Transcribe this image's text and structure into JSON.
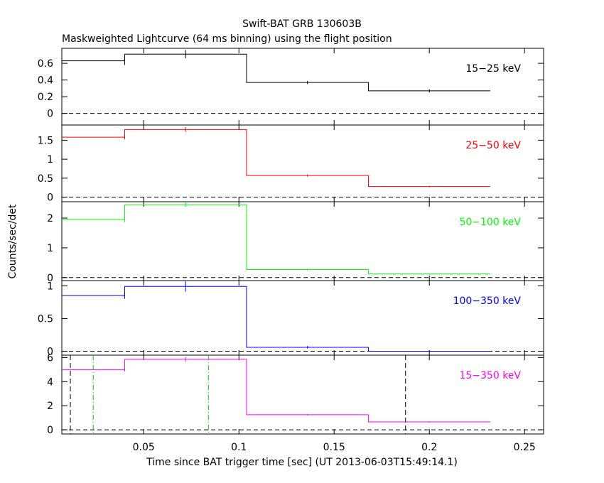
{
  "chart_data": {
    "type": "line",
    "title": "Swift-BAT GRB 130603B",
    "subtitle": "Maskweighted Lightcurve (64 ms binning) using the flight position",
    "xlabel": "Time since BAT trigger time [sec] (UT 2013-06-03T15:49:14.1)",
    "ylabel": "Counts/sec/det",
    "xlim": [
      0.007,
      0.26
    ],
    "x_ticks": [
      "0.05",
      "0.1",
      "0.15",
      "0.2",
      "0.25"
    ],
    "x_tick_values": [
      0.05,
      0.1,
      0.15,
      0.2,
      0.25
    ],
    "bin_edges": [
      0.007,
      0.04,
      0.104,
      0.168,
      0.232
    ],
    "bin_centers": [
      0.04,
      0.072,
      0.136,
      0.2
    ],
    "panels": [
      {
        "name": "15-25 keV",
        "label": "15−25 keV",
        "color": "#000000",
        "ylim": [
          -0.14,
          0.78
        ],
        "y_ticks": [
          "0",
          "0.2",
          "0.4",
          "0.6"
        ],
        "y_tick_values": [
          0,
          0.2,
          0.4,
          0.6
        ],
        "values": [
          0.63,
          0.71,
          0.37,
          0.27
        ],
        "errors": [
          0.05,
          0.05,
          0.02,
          0.02
        ]
      },
      {
        "name": "25-50 keV",
        "label": "25−50 keV",
        "color": "#ff0000",
        "ylim": [
          -0.12,
          1.9
        ],
        "y_ticks": [
          "0",
          "0.5",
          "1",
          "1.5"
        ],
        "y_tick_values": [
          0,
          0.5,
          1,
          1.5
        ],
        "values": [
          1.58,
          1.78,
          0.57,
          0.28
        ],
        "errors": [
          0.06,
          0.06,
          0.03,
          0.02
        ]
      },
      {
        "name": "50-100 keV",
        "label": "50−100 keV",
        "color": "#00ff00",
        "ylim": [
          -0.1,
          2.55
        ],
        "y_ticks": [
          "0",
          "1",
          "2"
        ],
        "y_tick_values": [
          0,
          1,
          2
        ],
        "values": [
          1.95,
          2.45,
          0.27,
          0.12
        ],
        "errors": [
          0.08,
          0.08,
          0.03,
          0.02
        ]
      },
      {
        "name": "100-350 keV",
        "label": "100−350 keV",
        "color": "#0000ff",
        "ylim": [
          -0.06,
          1.08
        ],
        "y_ticks": [
          "0",
          "0.5",
          "1"
        ],
        "y_tick_values": [
          0,
          0.5,
          1
        ],
        "values": [
          0.85,
          0.99,
          0.06,
          0.0
        ],
        "errors": [
          0.05,
          0.08,
          0.02,
          0.01
        ]
      },
      {
        "name": "15-350 keV",
        "label": "15−350 keV",
        "color": "#ff00ff",
        "ylim": [
          -0.35,
          6.2
        ],
        "y_ticks": [
          "0",
          "2",
          "4",
          "6"
        ],
        "y_tick_values": [
          0,
          2,
          4,
          6
        ],
        "values": [
          5.0,
          5.85,
          1.25,
          0.65
        ],
        "errors": [
          0.15,
          0.2,
          0.05,
          0.05
        ]
      }
    ],
    "vlines": [
      {
        "x": 0.0115,
        "color": "#000000",
        "style": "dashed"
      },
      {
        "x": 0.0235,
        "color": "#00cc00",
        "style": "dashdot"
      },
      {
        "x": 0.084,
        "color": "#00cc00",
        "style": "dashdot"
      },
      {
        "x": 0.1875,
        "color": "#000000",
        "style": "dashed"
      }
    ]
  }
}
